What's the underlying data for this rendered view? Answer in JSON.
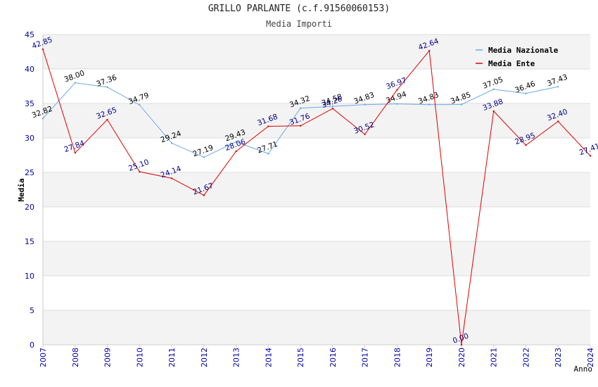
{
  "chart_data": {
    "type": "line",
    "title": "GRILLO PARLANTE (c.f.91560060153)",
    "subtitle": "Media Importi",
    "xlabel": "Anno",
    "ylabel": "Media",
    "ylim": [
      0,
      45
    ],
    "yticks": [
      "0",
      "5",
      "10",
      "15",
      "20",
      "25",
      "30",
      "35",
      "40",
      "45"
    ],
    "grid": true,
    "legend_position": "top-right",
    "x": [
      "2007",
      "2008",
      "2009",
      "2010",
      "2011",
      "2012",
      "2013",
      "2014",
      "2015",
      "2016",
      "2017",
      "2018",
      "2019",
      "2020",
      "2021",
      "2022",
      "2023",
      "2024"
    ],
    "series": [
      {
        "name": "Media Nazionale",
        "color": "#6aaae8",
        "label_color": "#000000",
        "values": [
          32.82,
          38.0,
          37.36,
          34.79,
          29.24,
          27.19,
          29.43,
          27.71,
          34.32,
          34.58,
          34.83,
          34.94,
          34.83,
          34.85,
          37.05,
          36.46,
          37.43,
          null
        ],
        "labels": [
          "32.82",
          "38.00",
          "37.36",
          "34.79",
          "29.24",
          "27.19",
          "29.43",
          "27.71",
          "34.32",
          "34.58",
          "34.83",
          "34.94",
          "34.83",
          "34.85",
          "37.05",
          "36.46",
          "37.43",
          ""
        ]
      },
      {
        "name": "Media Ente",
        "color": "#e00000",
        "label_color": "#000088",
        "values": [
          42.85,
          27.84,
          32.65,
          25.1,
          24.14,
          21.67,
          28.06,
          31.68,
          31.76,
          34.26,
          30.52,
          36.97,
          42.64,
          0.0,
          33.88,
          28.95,
          32.4,
          27.41
        ],
        "labels": [
          "42.85",
          "27.84",
          "32.65",
          "25.10",
          "24.14",
          "21.67",
          "28.06",
          "31.68",
          "31.76",
          "34.26",
          "30.52",
          "36.97",
          "42.64",
          "0.00",
          "33.88",
          "28.95",
          "32.40",
          "27.41"
        ]
      }
    ]
  }
}
